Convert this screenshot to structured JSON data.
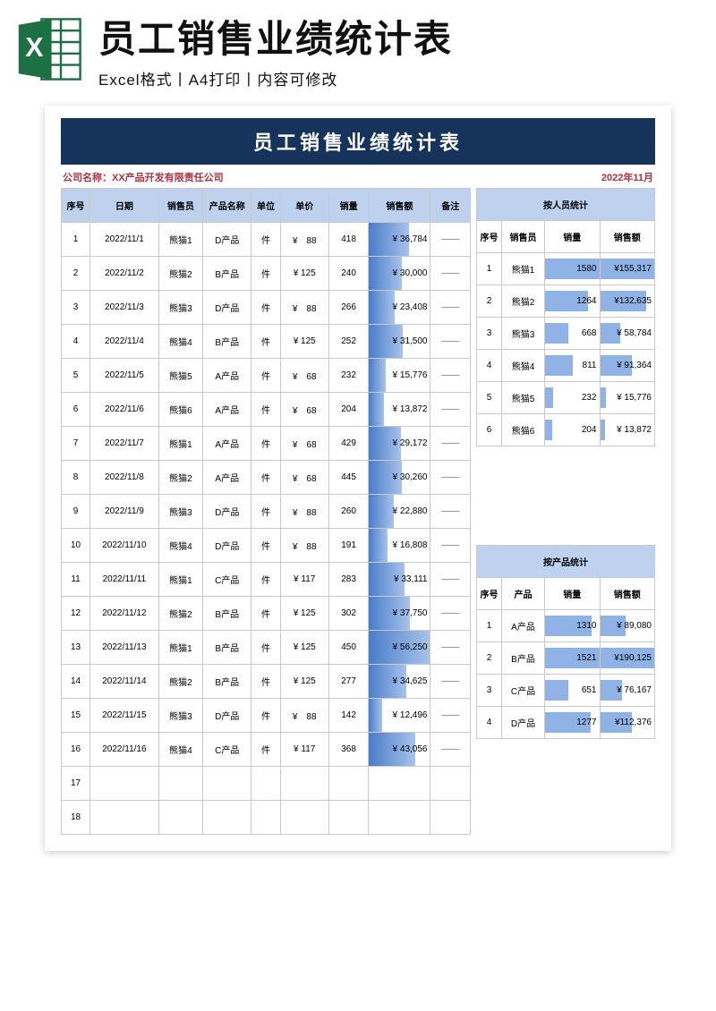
{
  "banner": {
    "title": "员工销售业绩统计表",
    "subtitle": "Excel格式丨A4打印丨内容可修改",
    "icon_fill": "#1d7044",
    "icon_letter": "X"
  },
  "sheet": {
    "title": "员工销售业绩统计表",
    "company_label": "公司名称：XX产品开发有限责任公司",
    "date_label": "2022年11月",
    "title_bg": "#16335b",
    "header_bg": "#bed2f0",
    "meta_color": "#b03040",
    "bar_color_from": "#4a7cc8",
    "bar_color_to": "#a7c3eb",
    "mini_bar_color": "#8fb3e6",
    "border_color": "#c9c9c9"
  },
  "main_table": {
    "columns": [
      "序号",
      "日期",
      "销售员",
      "产品名称",
      "单位",
      "单价",
      "销量",
      "销售额",
      "备注"
    ],
    "amount_max": 56250,
    "rows": [
      {
        "idx": "1",
        "date": "2022/11/1",
        "sales": "熊猫1",
        "prod": "D产品",
        "unit": "件",
        "price": "¥　88",
        "qty": "418",
        "amount": 36784,
        "amount_str": "¥ 36,784",
        "note": "——"
      },
      {
        "idx": "2",
        "date": "2022/11/2",
        "sales": "熊猫2",
        "prod": "B产品",
        "unit": "件",
        "price": "¥ 125",
        "qty": "240",
        "amount": 30000,
        "amount_str": "¥ 30,000",
        "note": "——"
      },
      {
        "idx": "3",
        "date": "2022/11/3",
        "sales": "熊猫3",
        "prod": "D产品",
        "unit": "件",
        "price": "¥　88",
        "qty": "266",
        "amount": 23408,
        "amount_str": "¥ 23,408",
        "note": "——"
      },
      {
        "idx": "4",
        "date": "2022/11/4",
        "sales": "熊猫4",
        "prod": "B产品",
        "unit": "件",
        "price": "¥ 125",
        "qty": "252",
        "amount": 31500,
        "amount_str": "¥ 31,500",
        "note": "——"
      },
      {
        "idx": "5",
        "date": "2022/11/5",
        "sales": "熊猫5",
        "prod": "A产品",
        "unit": "件",
        "price": "¥　68",
        "qty": "232",
        "amount": 15776,
        "amount_str": "¥ 15,776",
        "note": "——"
      },
      {
        "idx": "6",
        "date": "2022/11/6",
        "sales": "熊猫6",
        "prod": "A产品",
        "unit": "件",
        "price": "¥　68",
        "qty": "204",
        "amount": 13872,
        "amount_str": "¥ 13,872",
        "note": "——"
      },
      {
        "idx": "7",
        "date": "2022/11/7",
        "sales": "熊猫1",
        "prod": "A产品",
        "unit": "件",
        "price": "¥　68",
        "qty": "429",
        "amount": 29172,
        "amount_str": "¥ 29,172",
        "note": "——"
      },
      {
        "idx": "8",
        "date": "2022/11/8",
        "sales": "熊猫2",
        "prod": "A产品",
        "unit": "件",
        "price": "¥　68",
        "qty": "445",
        "amount": 30260,
        "amount_str": "¥ 30,260",
        "note": "——"
      },
      {
        "idx": "9",
        "date": "2022/11/9",
        "sales": "熊猫3",
        "prod": "D产品",
        "unit": "件",
        "price": "¥　88",
        "qty": "260",
        "amount": 22880,
        "amount_str": "¥ 22,880",
        "note": "——"
      },
      {
        "idx": "10",
        "date": "2022/11/10",
        "sales": "熊猫4",
        "prod": "D产品",
        "unit": "件",
        "price": "¥　88",
        "qty": "191",
        "amount": 16808,
        "amount_str": "¥ 16,808",
        "note": "——"
      },
      {
        "idx": "11",
        "date": "2022/11/11",
        "sales": "熊猫1",
        "prod": "C产品",
        "unit": "件",
        "price": "¥ 117",
        "qty": "283",
        "amount": 33111,
        "amount_str": "¥ 33,111",
        "note": "——"
      },
      {
        "idx": "12",
        "date": "2022/11/12",
        "sales": "熊猫2",
        "prod": "B产品",
        "unit": "件",
        "price": "¥ 125",
        "qty": "302",
        "amount": 37750,
        "amount_str": "¥ 37,750",
        "note": "——"
      },
      {
        "idx": "13",
        "date": "2022/11/13",
        "sales": "熊猫1",
        "prod": "B产品",
        "unit": "件",
        "price": "¥ 125",
        "qty": "450",
        "amount": 56250,
        "amount_str": "¥ 56,250",
        "note": "——"
      },
      {
        "idx": "14",
        "date": "2022/11/14",
        "sales": "熊猫2",
        "prod": "B产品",
        "unit": "件",
        "price": "¥ 125",
        "qty": "277",
        "amount": 34625,
        "amount_str": "¥ 34,625",
        "note": "——"
      },
      {
        "idx": "15",
        "date": "2022/11/15",
        "sales": "熊猫3",
        "prod": "D产品",
        "unit": "件",
        "price": "¥　88",
        "qty": "142",
        "amount": 12496,
        "amount_str": "¥ 12,496",
        "note": "——"
      },
      {
        "idx": "16",
        "date": "2022/11/16",
        "sales": "熊猫4",
        "prod": "C产品",
        "unit": "件",
        "price": "¥ 117",
        "qty": "368",
        "amount": 43056,
        "amount_str": "¥ 43,056",
        "note": "——"
      },
      {
        "idx": "17",
        "date": "",
        "sales": "",
        "prod": "",
        "unit": "",
        "price": "",
        "qty": "",
        "amount": null,
        "amount_str": "",
        "note": ""
      },
      {
        "idx": "18",
        "date": "",
        "sales": "",
        "prod": "",
        "unit": "",
        "price": "",
        "qty": "",
        "amount": null,
        "amount_str": "",
        "note": ""
      }
    ]
  },
  "person_stats": {
    "title": "按人员统计",
    "columns": [
      "序号",
      "销售员",
      "销量",
      "销售额"
    ],
    "qty_max": 1580,
    "amt_max": 155317,
    "rows": [
      {
        "idx": "1",
        "name": "熊猫1",
        "qty": 1580,
        "qty_str": "1580",
        "amt": 155317,
        "amt_str": "¥155,317"
      },
      {
        "idx": "2",
        "name": "熊猫2",
        "qty": 1264,
        "qty_str": "1264",
        "amt": 132635,
        "amt_str": "¥132,635"
      },
      {
        "idx": "3",
        "name": "熊猫3",
        "qty": 668,
        "qty_str": "668",
        "amt": 58784,
        "amt_str": "¥ 58,784"
      },
      {
        "idx": "4",
        "name": "熊猫4",
        "qty": 811,
        "qty_str": "811",
        "amt": 91364,
        "amt_str": "¥ 91,364"
      },
      {
        "idx": "5",
        "name": "熊猫5",
        "qty": 232,
        "qty_str": "232",
        "amt": 15776,
        "amt_str": "¥ 15,776"
      },
      {
        "idx": "6",
        "name": "熊猫6",
        "qty": 204,
        "qty_str": "204",
        "amt": 13872,
        "amt_str": "¥ 13,872"
      }
    ]
  },
  "product_stats": {
    "title": "按产品统计",
    "columns": [
      "序号",
      "产品",
      "销量",
      "销售额"
    ],
    "qty_max": 1521,
    "amt_max": 190125,
    "rows": [
      {
        "idx": "1",
        "name": "A产品",
        "qty": 1310,
        "qty_str": "1310",
        "amt": 89080,
        "amt_str": "¥ 89,080"
      },
      {
        "idx": "2",
        "name": "B产品",
        "qty": 1521,
        "qty_str": "1521",
        "amt": 190125,
        "amt_str": "¥190,125"
      },
      {
        "idx": "3",
        "name": "C产品",
        "qty": 651,
        "qty_str": "651",
        "amt": 76167,
        "amt_str": "¥ 76,167"
      },
      {
        "idx": "4",
        "name": "D产品",
        "qty": 1277,
        "qty_str": "1277",
        "amt": 112376,
        "amt_str": "¥112,376"
      }
    ]
  }
}
